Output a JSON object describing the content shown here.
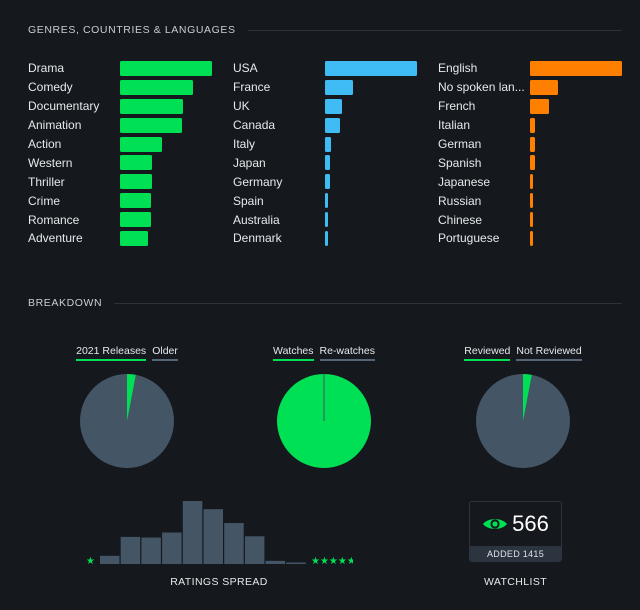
{
  "sections": {
    "genres_title": "GENRES, COUNTRIES & LANGUAGES",
    "breakdown_title": "BREAKDOWN"
  },
  "colors": {
    "green": "#00e054",
    "blue": "#40bcf4",
    "orange": "#ff8000",
    "slate": "#445566"
  },
  "chart_data": [
    {
      "type": "bar",
      "title": "Genres",
      "orientation": "horizontal",
      "categories": [
        "Drama",
        "Comedy",
        "Documentary",
        "Animation",
        "Action",
        "Western",
        "Thriller",
        "Crime",
        "Romance",
        "Adventure"
      ],
      "values": [
        100,
        79,
        68,
        67,
        46,
        35,
        35,
        34,
        34,
        30
      ]
    },
    {
      "type": "bar",
      "title": "Countries",
      "orientation": "horizontal",
      "categories": [
        "USA",
        "France",
        "UK",
        "Canada",
        "Italy",
        "Japan",
        "Germany",
        "Spain",
        "Australia",
        "Denmark"
      ],
      "values": [
        100,
        30,
        19,
        16,
        6,
        5,
        5,
        3,
        3,
        3
      ]
    },
    {
      "type": "bar",
      "title": "Languages",
      "orientation": "horizontal",
      "categories": [
        "English",
        "No spoken lan...",
        "French",
        "Italian",
        "German",
        "Spanish",
        "Japanese",
        "Russian",
        "Chinese",
        "Portuguese"
      ],
      "values": [
        100,
        30,
        21,
        5,
        5,
        5,
        3,
        3,
        3,
        3
      ]
    },
    {
      "type": "pie",
      "title": "Releases",
      "labels": [
        "2021 Releases",
        "Older"
      ],
      "values": [
        3,
        97
      ]
    },
    {
      "type": "pie",
      "title": "Watches",
      "labels": [
        "Watches",
        "Re-watches"
      ],
      "values": [
        99.9,
        0.1
      ]
    },
    {
      "type": "pie",
      "title": "Reviews",
      "labels": [
        "Reviewed",
        "Not Reviewed"
      ],
      "values": [
        3,
        97
      ]
    },
    {
      "type": "bar",
      "title": "RATINGS SPREAD",
      "categories": [
        "0.5",
        "1",
        "1.5",
        "2",
        "2.5",
        "3",
        "3.5",
        "4",
        "4.5",
        "5"
      ],
      "values": [
        13,
        43,
        42,
        50,
        100,
        87,
        65,
        44,
        5,
        2
      ],
      "xlabel_left": "★",
      "xlabel_right": "★★★★★",
      "ylim": [
        0,
        100
      ]
    }
  ],
  "watchlist": {
    "count": "566",
    "added": "ADDED 1415",
    "label": "WATCHLIST"
  }
}
